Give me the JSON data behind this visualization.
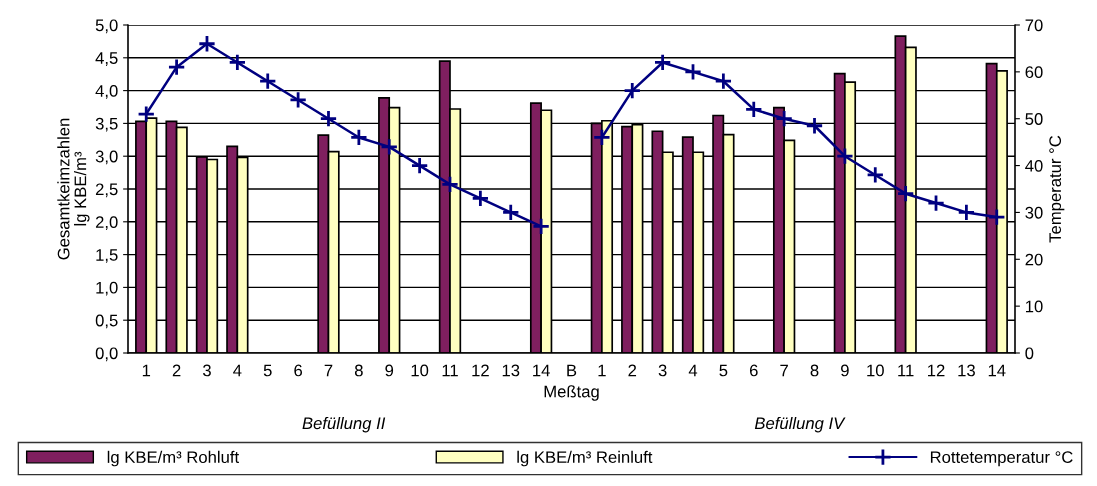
{
  "chart_data": {
    "type": "bar",
    "categories": [
      "1",
      "2",
      "3",
      "4",
      "5",
      "6",
      "7",
      "8",
      "9",
      "10",
      "11",
      "12",
      "13",
      "14",
      "B",
      "1",
      "2",
      "3",
      "4",
      "5",
      "6",
      "7",
      "8",
      "9",
      "10",
      "11",
      "12",
      "13",
      "14"
    ],
    "series": [
      {
        "name": "lg KBE/m³ Rohluft",
        "color": "#7f1f5f",
        "values": [
          3.53,
          3.53,
          2.99,
          3.15,
          null,
          null,
          3.32,
          null,
          3.89,
          null,
          4.45,
          null,
          null,
          3.81,
          null,
          3.5,
          3.45,
          3.38,
          3.29,
          3.62,
          null,
          3.74,
          null,
          4.26,
          null,
          4.83,
          null,
          null,
          4.41
        ]
      },
      {
        "name": "lg KBE/m³ Reinluft",
        "color": "#ffffc0",
        "values": [
          3.58,
          3.44,
          2.95,
          2.98,
          null,
          null,
          3.07,
          null,
          3.74,
          null,
          3.72,
          null,
          null,
          3.7,
          null,
          3.54,
          3.48,
          3.06,
          3.06,
          3.33,
          null,
          3.24,
          null,
          4.13,
          null,
          4.66,
          null,
          null,
          4.3
        ]
      },
      {
        "name": "Rottetemperatur °C",
        "type": "line",
        "axis": "y2",
        "color": "#000080",
        "marker": "cross",
        "values": [
          51,
          61,
          66,
          62,
          58,
          54,
          50,
          46,
          44,
          40,
          36,
          33,
          30,
          27,
          null,
          46,
          56,
          62,
          60,
          58,
          52,
          50,
          48.5,
          42,
          38,
          34,
          32,
          30,
          29
        ]
      }
    ],
    "ylabel": "Gesamtkeimzahlen\nlg KBE/m³",
    "y2label": "Temperatur °C",
    "xlabel": "Meßtag",
    "annotations": [
      "Befüllung II",
      "Befüllung IV"
    ],
    "ylim": [
      0,
      5
    ],
    "yticks": [
      {
        "value": 0,
        "label": "0,0"
      },
      {
        "value": 0.5,
        "label": "0,5"
      },
      {
        "value": 1,
        "label": "1,0"
      },
      {
        "value": 1.5,
        "label": "1,5"
      },
      {
        "value": 2,
        "label": "2,0"
      },
      {
        "value": 2.5,
        "label": "2,5"
      },
      {
        "value": 3,
        "label": "3,0"
      },
      {
        "value": 3.5,
        "label": "3,5"
      },
      {
        "value": 4,
        "label": "4,0"
      },
      {
        "value": 4.5,
        "label": "4,5"
      },
      {
        "value": 5,
        "label": "5,0"
      }
    ],
    "y2lim": [
      0,
      70
    ],
    "y2ticks": [
      0,
      10,
      20,
      30,
      40,
      50,
      60,
      70
    ],
    "grid": "y",
    "legend": "bottom"
  }
}
